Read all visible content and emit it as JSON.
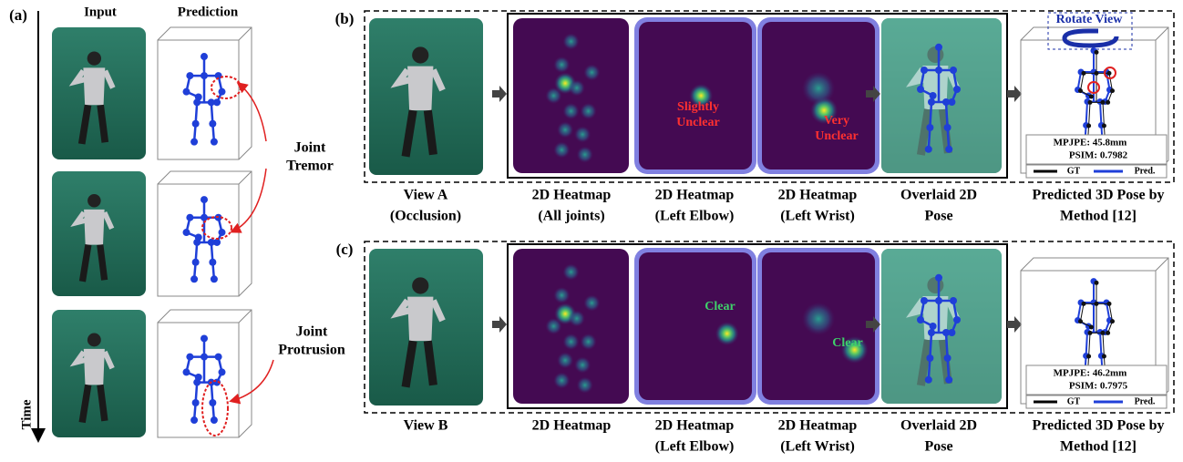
{
  "panel_a": {
    "label": "(a)",
    "input_header": "Input",
    "prediction_header": "Prediction",
    "tremor_label": [
      "Joint",
      "Tremor"
    ],
    "protrusion_label": [
      "Joint",
      "Protrusion"
    ],
    "time_label": "Time"
  },
  "panel_b": {
    "label": "(b)",
    "rotate_view": "Rotate View",
    "elbow_note": [
      "Slightly",
      "Unclear"
    ],
    "wrist_note": [
      "Very",
      "Unclear"
    ],
    "metrics": {
      "mpjpe": "MPJPE: 45.8mm",
      "psim": "PSIM: 0.7982"
    },
    "legend": {
      "gt": "GT",
      "pred": "Pred."
    },
    "captions": [
      [
        "View A",
        "(Occlusion)"
      ],
      [
        "2D Heatmap",
        "(All joints)"
      ],
      [
        "2D Heatmap",
        "(Left Elbow)"
      ],
      [
        "2D Heatmap",
        "(Left Wrist)"
      ],
      [
        "Overlaid 2D",
        "Pose"
      ],
      [
        "Predicted 3D Pose by",
        "Method [12]"
      ]
    ]
  },
  "panel_c": {
    "label": "(c)",
    "elbow_note": [
      "Clear"
    ],
    "wrist_note": [
      "Clear"
    ],
    "metrics": {
      "mpjpe": "MPJPE: 46.2mm",
      "psim": "PSIM: 0.7975"
    },
    "legend": {
      "gt": "GT",
      "pred": "Pred."
    },
    "captions": [
      [
        "View B"
      ],
      [
        "2D Heatmap"
      ],
      [
        "2D Heatmap",
        "(Left Elbow)"
      ],
      [
        "2D Heatmap",
        "(Left Wrist)"
      ],
      [
        "Overlaid 2D",
        "Pose"
      ],
      [
        "Predicted 3D Pose by",
        "Method [12]"
      ]
    ]
  }
}
